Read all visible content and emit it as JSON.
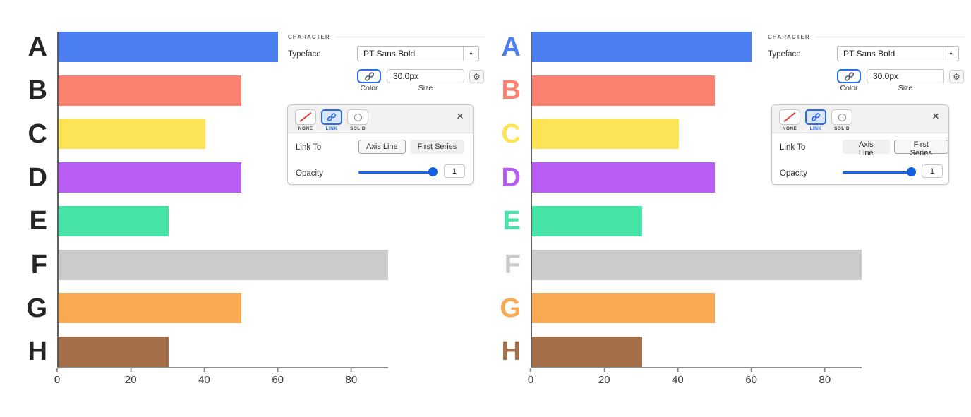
{
  "ui": {
    "character_label": "CHARACTER",
    "typeface_label": "Typeface",
    "typeface_value": "PT Sans Bold",
    "size_value": "30.0px",
    "color_caption": "Color",
    "size_caption": "Size",
    "stroke_modes": [
      {
        "label": "NONE"
      },
      {
        "label": "LINK"
      },
      {
        "label": "SOLID"
      }
    ],
    "link_to_label": "Link To",
    "axis_line_button": "Axis Line",
    "first_series_button": "First Series",
    "opacity_label": "Opacity",
    "opacity_value": "1",
    "icons": {
      "close": "×",
      "gear": "⚙",
      "caret": "▾"
    }
  },
  "panels": [
    {
      "side": "left",
      "stroke_mode_selected": "LINK",
      "link_to_selected": "Axis Line",
      "opacity": 1
    },
    {
      "side": "right",
      "stroke_mode_selected": "LINK",
      "link_to_selected": "First Series",
      "opacity": 1
    }
  ],
  "colors": {
    "accent_blue": "#2a6be8",
    "slider_blue": "#1a66e8",
    "none_red": "#e0443e",
    "axis_gray": "#8c8c8c"
  },
  "chart_data": [
    {
      "type": "bar",
      "orientation": "horizontal",
      "categories": [
        "A",
        "B",
        "C",
        "D",
        "E",
        "F",
        "G",
        "H"
      ],
      "values": [
        60,
        50,
        40,
        50,
        30,
        90,
        50,
        30
      ],
      "bar_colors": [
        "#4c80f2",
        "#fb8271",
        "#fde356",
        "#b95cf4",
        "#45e3a6",
        "#cbcbcb",
        "#f9a952",
        "#a56f49"
      ],
      "label_colors": [
        "#262626",
        "#262626",
        "#262626",
        "#262626",
        "#262626",
        "#262626",
        "#262626",
        "#262626"
      ],
      "x_ticks": [
        0,
        20,
        40,
        60,
        80
      ],
      "xlim": [
        0,
        90
      ],
      "grid": false,
      "title": "",
      "xlabel": "",
      "ylabel": ""
    },
    {
      "type": "bar",
      "orientation": "horizontal",
      "categories": [
        "A",
        "B",
        "C",
        "D",
        "E",
        "F",
        "G",
        "H"
      ],
      "values": [
        60,
        50,
        40,
        50,
        30,
        90,
        50,
        30
      ],
      "bar_colors": [
        "#4c80f2",
        "#fb8271",
        "#fde356",
        "#b95cf4",
        "#45e3a6",
        "#cbcbcb",
        "#f9a952",
        "#a56f49"
      ],
      "label_colors": [
        "#4c80f2",
        "#fb8271",
        "#fde356",
        "#b95cf4",
        "#45e3a6",
        "#cbcbcb",
        "#f9a952",
        "#a56f49"
      ],
      "x_ticks": [
        0,
        20,
        40,
        60,
        80
      ],
      "xlim": [
        0,
        90
      ],
      "grid": false,
      "title": "",
      "xlabel": "",
      "ylabel": ""
    }
  ]
}
